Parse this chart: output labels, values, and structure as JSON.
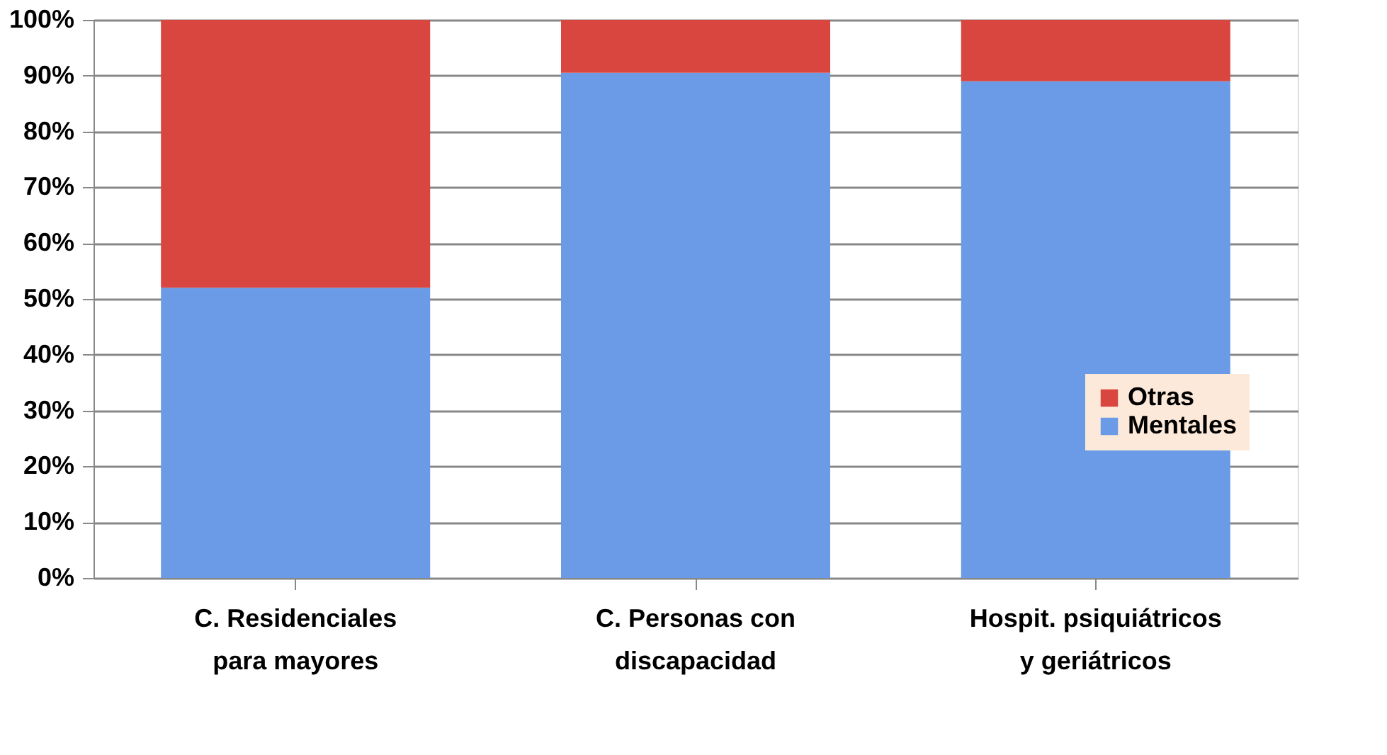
{
  "chart_data": {
    "type": "bar",
    "stacked": true,
    "categories": [
      "C. Residenciales para mayores",
      "C. Personas con discapacidad",
      "Hospit. psiquiátricos y geriátricos"
    ],
    "series": [
      {
        "name": "Mentales",
        "color": "#6b9be6",
        "values": [
          52,
          90.5,
          89
        ]
      },
      {
        "name": "Otras",
        "color": "#d9463f",
        "values": [
          48,
          9.5,
          11
        ]
      }
    ],
    "ylim": [
      0,
      100
    ],
    "yticks": [
      {
        "value": 0,
        "label": "0%"
      },
      {
        "value": 10,
        "label": "10%"
      },
      {
        "value": 20,
        "label": "20%"
      },
      {
        "value": 30,
        "label": "30%"
      },
      {
        "value": 40,
        "label": "40%"
      },
      {
        "value": 50,
        "label": "50%"
      },
      {
        "value": 60,
        "label": "60%"
      },
      {
        "value": 70,
        "label": "70%"
      },
      {
        "value": 80,
        "label": "80%"
      },
      {
        "value": 90,
        "label": "90%"
      },
      {
        "value": 100,
        "label": "100%"
      }
    ],
    "grid": "y",
    "legend": "right"
  }
}
